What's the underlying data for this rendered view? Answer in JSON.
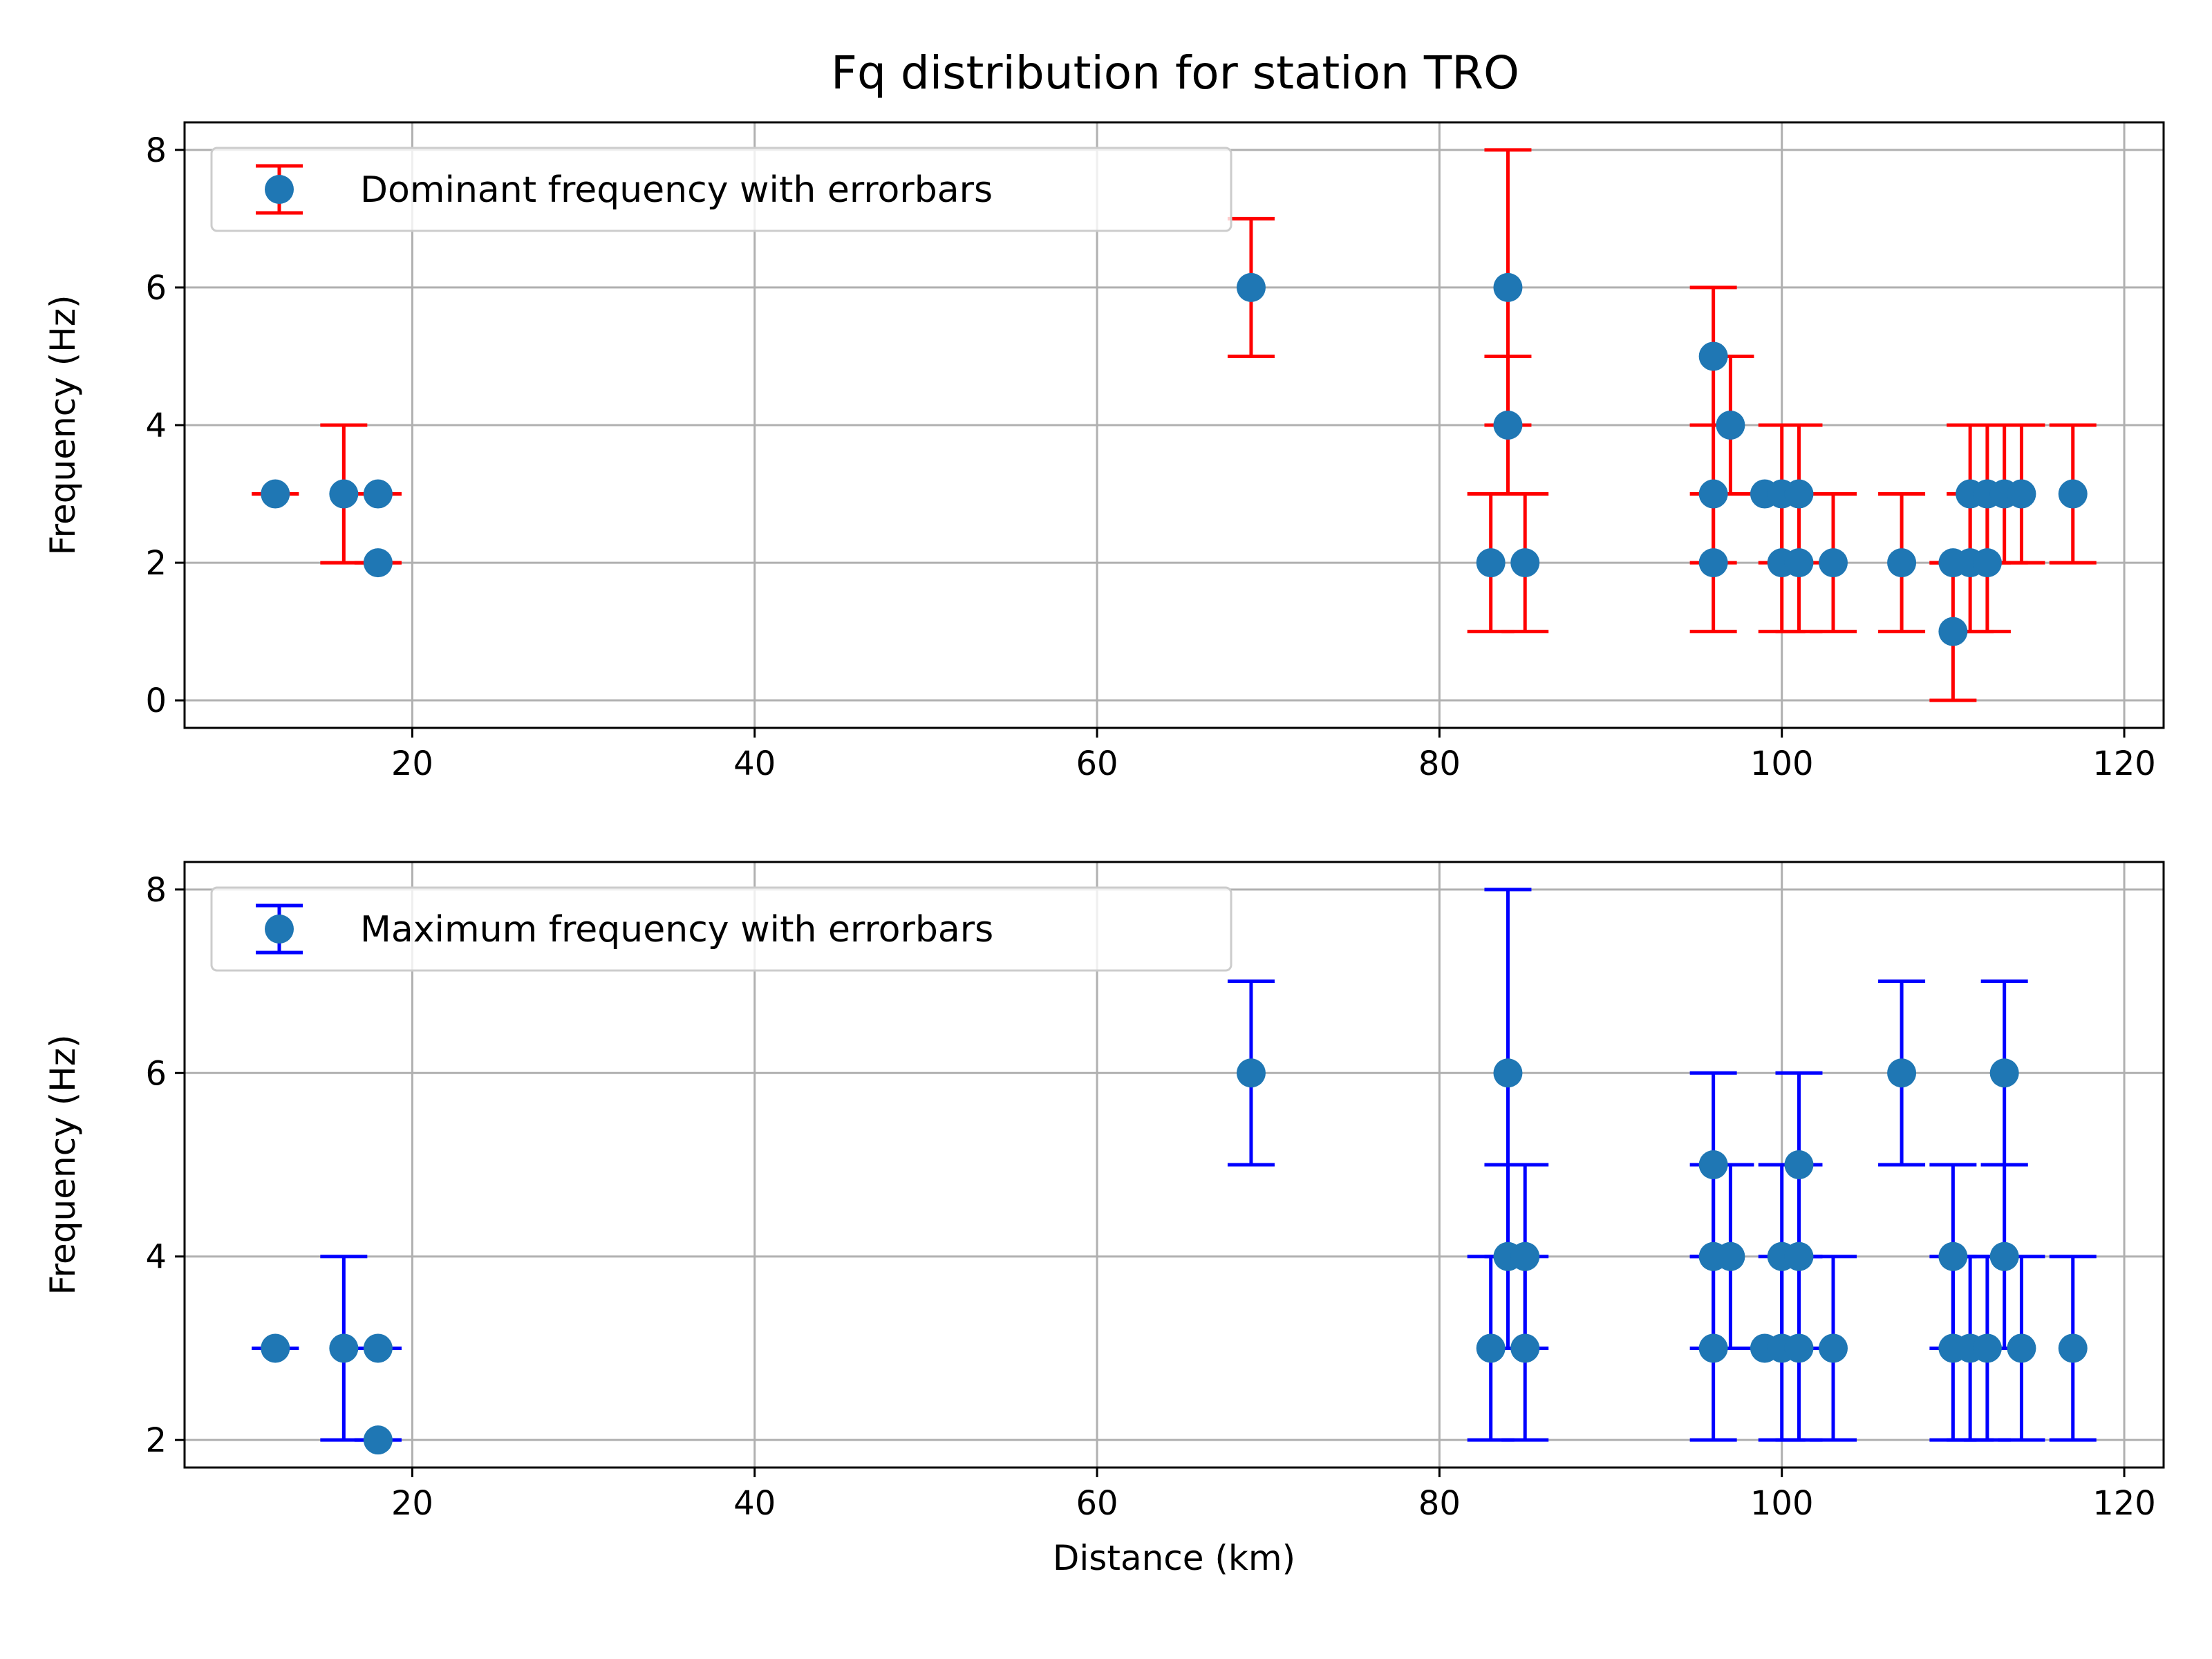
{
  "figure": {
    "title": "Fq distribution for station TRO"
  },
  "chart_data": [
    {
      "type": "scatter",
      "title": "Fq distribution for station TRO",
      "xlabel": "",
      "ylabel": "Frequency (Hz)",
      "xlim": [
        6.7,
        122.3
      ],
      "ylim": [
        -0.4,
        8.4
      ],
      "xticks": [
        20,
        40,
        60,
        80,
        100,
        120
      ],
      "yticks": [
        0,
        2,
        4,
        6,
        8
      ],
      "grid": true,
      "legend_position": "upper left",
      "series": [
        {
          "name": "Dominant frequency with errorbars",
          "marker_color": "#1f77b4",
          "errorbar_color": "#ff0000",
          "points": [
            {
              "x": 12,
              "y": 3,
              "yerr": 0
            },
            {
              "x": 16,
              "y": 3,
              "yerr": 1
            },
            {
              "x": 18,
              "y": 3,
              "yerr": 0
            },
            {
              "x": 18,
              "y": 2,
              "yerr": 0
            },
            {
              "x": 69,
              "y": 6,
              "yerr": 1
            },
            {
              "x": 83,
              "y": 2,
              "yerr": 1
            },
            {
              "x": 84,
              "y": 6,
              "yerr": 2
            },
            {
              "x": 84,
              "y": 4,
              "yerr": 1
            },
            {
              "x": 85,
              "y": 2,
              "yerr": 1
            },
            {
              "x": 96,
              "y": 5,
              "yerr": 1
            },
            {
              "x": 96,
              "y": 3,
              "yerr": 1
            },
            {
              "x": 96,
              "y": 2,
              "yerr": 1
            },
            {
              "x": 97,
              "y": 4,
              "yerr": 1
            },
            {
              "x": 99,
              "y": 3,
              "yerr": 0
            },
            {
              "x": 100,
              "y": 3,
              "yerr": 1
            },
            {
              "x": 100,
              "y": 2,
              "yerr": 1
            },
            {
              "x": 101,
              "y": 3,
              "yerr": 1
            },
            {
              "x": 101,
              "y": 2,
              "yerr": 1
            },
            {
              "x": 103,
              "y": 2,
              "yerr": 1
            },
            {
              "x": 107,
              "y": 2,
              "yerr": 1
            },
            {
              "x": 110,
              "y": 2,
              "yerr": 0
            },
            {
              "x": 110,
              "y": 1,
              "yerr": 1
            },
            {
              "x": 111,
              "y": 3,
              "yerr": 1
            },
            {
              "x": 111,
              "y": 2,
              "yerr": 1
            },
            {
              "x": 112,
              "y": 3,
              "yerr": 1
            },
            {
              "x": 112,
              "y": 2,
              "yerr": 1
            },
            {
              "x": 113,
              "y": 3,
              "yerr": 1
            },
            {
              "x": 114,
              "y": 3,
              "yerr": 1
            },
            {
              "x": 117,
              "y": 3,
              "yerr": 1
            }
          ]
        }
      ]
    },
    {
      "type": "scatter",
      "title": "",
      "xlabel": "Distance (km)",
      "ylabel": "Frequency (Hz)",
      "xlim": [
        6.7,
        122.3
      ],
      "ylim": [
        1.7,
        8.3
      ],
      "xticks": [
        20,
        40,
        60,
        80,
        100,
        120
      ],
      "yticks": [
        2,
        4,
        6,
        8
      ],
      "grid": true,
      "legend_position": "upper left",
      "series": [
        {
          "name": "Maximum frequency with errorbars",
          "marker_color": "#1f77b4",
          "errorbar_color": "#0000ff",
          "points": [
            {
              "x": 12,
              "y": 3,
              "yerr": 0
            },
            {
              "x": 16,
              "y": 3,
              "yerr": 1
            },
            {
              "x": 18,
              "y": 3,
              "yerr": 0
            },
            {
              "x": 18,
              "y": 2,
              "yerr": 0
            },
            {
              "x": 69,
              "y": 6,
              "yerr": 1
            },
            {
              "x": 83,
              "y": 3,
              "yerr": 1
            },
            {
              "x": 84,
              "y": 6,
              "yerr": 2
            },
            {
              "x": 84,
              "y": 4,
              "yerr": 1
            },
            {
              "x": 85,
              "y": 4,
              "yerr": 1
            },
            {
              "x": 85,
              "y": 3,
              "yerr": 1
            },
            {
              "x": 96,
              "y": 5,
              "yerr": 1
            },
            {
              "x": 96,
              "y": 4,
              "yerr": 1
            },
            {
              "x": 96,
              "y": 3,
              "yerr": 1
            },
            {
              "x": 97,
              "y": 4,
              "yerr": 1
            },
            {
              "x": 99,
              "y": 3,
              "yerr": 0
            },
            {
              "x": 100,
              "y": 4,
              "yerr": 1
            },
            {
              "x": 100,
              "y": 3,
              "yerr": 1
            },
            {
              "x": 101,
              "y": 5,
              "yerr": 1
            },
            {
              "x": 101,
              "y": 4,
              "yerr": 1
            },
            {
              "x": 101,
              "y": 3,
              "yerr": 1
            },
            {
              "x": 103,
              "y": 3,
              "yerr": 1
            },
            {
              "x": 107,
              "y": 6,
              "yerr": 1
            },
            {
              "x": 110,
              "y": 4,
              "yerr": 1
            },
            {
              "x": 110,
              "y": 3,
              "yerr": 1
            },
            {
              "x": 111,
              "y": 3,
              "yerr": 1
            },
            {
              "x": 112,
              "y": 3,
              "yerr": 1
            },
            {
              "x": 113,
              "y": 6,
              "yerr": 1
            },
            {
              "x": 113,
              "y": 4,
              "yerr": 1
            },
            {
              "x": 114,
              "y": 3,
              "yerr": 1
            },
            {
              "x": 117,
              "y": 3,
              "yerr": 1
            }
          ]
        }
      ]
    }
  ]
}
